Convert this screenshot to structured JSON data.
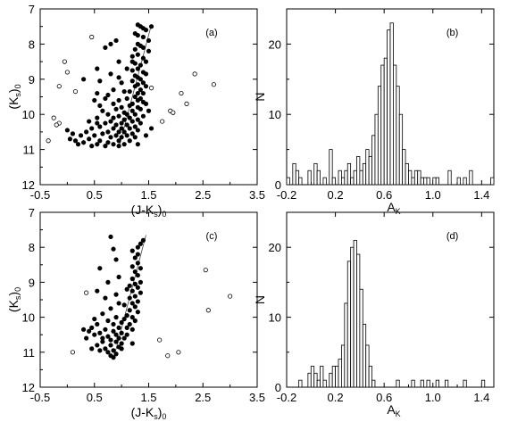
{
  "chart_data": [
    {
      "id": "a",
      "type": "scatter",
      "panel_label": "(a)",
      "xlabel": "(J-Ks)0",
      "xlabel_parts": [
        "(J-K",
        "s",
        ")",
        "0"
      ],
      "ylabel_parts": [
        "(K",
        "s",
        ")",
        "0"
      ],
      "xlim": [
        -0.5,
        3.5
      ],
      "ylim": [
        12,
        7
      ],
      "y_inverted": true,
      "xticks": [
        "-0.5",
        "0.5",
        "1.5",
        "2.5",
        "3.5"
      ],
      "xtick_values": [
        -0.5,
        0.5,
        1.5,
        2.5,
        3.5
      ],
      "yticks": [
        "7",
        "8",
        "9",
        "10",
        "11",
        "12"
      ],
      "ytick_values": [
        7,
        8,
        9,
        10,
        11,
        12
      ],
      "fitline": [
        [
          0.95,
          10.95
        ],
        [
          1.55,
          7.45
        ]
      ],
      "open_points": [
        [
          0.45,
          7.8
        ],
        [
          -0.05,
          8.5
        ],
        [
          0.0,
          8.8
        ],
        [
          -0.15,
          9.2
        ],
        [
          0.15,
          9.35
        ],
        [
          -0.25,
          10.1
        ],
        [
          -0.15,
          10.25
        ],
        [
          -0.2,
          10.3
        ],
        [
          -0.35,
          10.75
        ],
        [
          1.55,
          9.25
        ],
        [
          1.9,
          9.9
        ],
        [
          1.95,
          9.95
        ],
        [
          2.2,
          9.7
        ],
        [
          2.35,
          8.85
        ],
        [
          2.1,
          9.4
        ],
        [
          2.7,
          9.15
        ],
        [
          1.75,
          10.2
        ]
      ],
      "filled_points": [
        [
          1.3,
          7.45
        ],
        [
          1.35,
          7.5
        ],
        [
          1.55,
          7.5
        ],
        [
          1.4,
          7.55
        ],
        [
          1.45,
          7.6
        ],
        [
          1.25,
          7.7
        ],
        [
          1.3,
          7.75
        ],
        [
          1.4,
          7.8
        ],
        [
          0.9,
          7.9
        ],
        [
          1.3,
          8.0
        ],
        [
          1.35,
          8.05
        ],
        [
          1.4,
          8.1
        ],
        [
          1.25,
          8.15
        ],
        [
          0.7,
          8.1
        ],
        [
          1.3,
          8.3
        ],
        [
          1.2,
          8.35
        ],
        [
          1.4,
          8.4
        ],
        [
          1.45,
          8.5
        ],
        [
          0.95,
          8.5
        ],
        [
          1.25,
          8.55
        ],
        [
          1.35,
          8.6
        ],
        [
          1.3,
          8.7
        ],
        [
          0.55,
          8.7
        ],
        [
          1.2,
          8.75
        ],
        [
          1.4,
          8.8
        ],
        [
          1.45,
          8.85
        ],
        [
          1.25,
          8.9
        ],
        [
          1.3,
          8.95
        ],
        [
          0.8,
          8.85
        ],
        [
          0.95,
          8.95
        ],
        [
          1.35,
          9.0
        ],
        [
          1.2,
          9.05
        ],
        [
          1.4,
          9.1
        ],
        [
          0.3,
          9.0
        ],
        [
          0.6,
          9.05
        ],
        [
          1.3,
          9.15
        ],
        [
          1.25,
          9.2
        ],
        [
          1.35,
          9.3
        ],
        [
          0.85,
          9.3
        ],
        [
          1.05,
          9.35
        ],
        [
          1.15,
          9.35
        ],
        [
          1.3,
          9.4
        ],
        [
          1.4,
          9.4
        ],
        [
          0.55,
          9.4
        ],
        [
          0.75,
          9.45
        ],
        [
          1.25,
          9.5
        ],
        [
          1.35,
          9.55
        ],
        [
          1.1,
          9.55
        ],
        [
          0.95,
          9.6
        ],
        [
          0.7,
          9.55
        ],
        [
          1.3,
          9.6
        ],
        [
          1.4,
          9.65
        ],
        [
          1.2,
          9.7
        ],
        [
          0.85,
          9.7
        ],
        [
          1.45,
          9.7
        ],
        [
          1.15,
          9.75
        ],
        [
          0.6,
          9.75
        ],
        [
          1.3,
          9.8
        ],
        [
          1.0,
          9.8
        ],
        [
          1.35,
          9.85
        ],
        [
          1.2,
          9.9
        ],
        [
          0.9,
          9.85
        ],
        [
          1.05,
          9.95
        ],
        [
          1.1,
          10.0
        ],
        [
          0.75,
          10.0
        ],
        [
          1.25,
          10.0
        ],
        [
          1.4,
          10.05
        ],
        [
          0.95,
          10.05
        ],
        [
          1.15,
          10.1
        ],
        [
          0.85,
          10.1
        ],
        [
          1.3,
          10.15
        ],
        [
          1.05,
          10.15
        ],
        [
          0.55,
          10.1
        ],
        [
          1.2,
          10.2
        ],
        [
          0.8,
          10.2
        ],
        [
          1.0,
          10.25
        ],
        [
          1.35,
          10.25
        ],
        [
          0.7,
          10.25
        ],
        [
          0.9,
          10.3
        ],
        [
          1.1,
          10.3
        ],
        [
          1.25,
          10.35
        ],
        [
          0.6,
          10.35
        ],
        [
          1.0,
          10.4
        ],
        [
          0.85,
          10.4
        ],
        [
          1.15,
          10.4
        ],
        [
          0.45,
          10.4
        ],
        [
          1.3,
          10.45
        ],
        [
          0.95,
          10.5
        ],
        [
          0.75,
          10.5
        ],
        [
          1.05,
          10.5
        ],
        [
          1.2,
          10.55
        ],
        [
          0.35,
          10.5
        ],
        [
          0.65,
          10.55
        ],
        [
          0.9,
          10.6
        ],
        [
          1.1,
          10.6
        ],
        [
          0.5,
          10.6
        ],
        [
          0.8,
          10.65
        ],
        [
          1.0,
          10.65
        ],
        [
          1.25,
          10.65
        ],
        [
          0.25,
          10.6
        ],
        [
          0.1,
          10.55
        ],
        [
          0.0,
          10.45
        ],
        [
          0.05,
          10.7
        ],
        [
          0.4,
          10.7
        ],
        [
          0.6,
          10.75
        ],
        [
          0.95,
          10.75
        ],
        [
          1.15,
          10.75
        ],
        [
          0.3,
          10.8
        ],
        [
          0.75,
          10.8
        ],
        [
          0.55,
          10.85
        ],
        [
          0.85,
          10.85
        ],
        [
          1.05,
          10.85
        ],
        [
          0.2,
          10.85
        ],
        [
          0.45,
          10.9
        ],
        [
          0.7,
          10.9
        ],
        [
          0.95,
          10.9
        ],
        [
          1.3,
          10.85
        ],
        [
          0.15,
          10.75
        ],
        [
          1.5,
          8.2
        ],
        [
          1.45,
          9.2
        ],
        [
          1.5,
          9.9
        ],
        [
          1.55,
          10.4
        ],
        [
          1.45,
          10.6
        ],
        [
          0.5,
          9.6
        ],
        [
          0.65,
          9.9
        ],
        [
          0.4,
          10.2
        ],
        [
          0.55,
          10.25
        ],
        [
          1.5,
          7.9
        ],
        [
          1.2,
          8.5
        ],
        [
          0.8,
          8.0
        ],
        [
          1.1,
          8.7
        ],
        [
          1.0,
          9.1
        ]
      ]
    },
    {
      "id": "b",
      "type": "bar",
      "panel_label": "(b)",
      "xlabel_parts": [
        "A",
        "K"
      ],
      "ylabel": "N",
      "xlim": [
        -0.2,
        1.5
      ],
      "ylim": [
        0,
        25
      ],
      "xticks": [
        "-0.2",
        "0.2",
        "0.6",
        "1.0",
        "1.4"
      ],
      "xtick_values": [
        -0.2,
        0.2,
        0.6,
        1.0,
        1.4
      ],
      "yticks": [
        "0",
        "10",
        "20"
      ],
      "ytick_values": [
        0,
        10,
        20
      ],
      "bin_start": -0.2,
      "bin_width": 0.025,
      "values": [
        1,
        0,
        3,
        2,
        1,
        0,
        0,
        2,
        0,
        3,
        2,
        0,
        1,
        0,
        5,
        1,
        0,
        2,
        1,
        2,
        3,
        1,
        2,
        4,
        2,
        3,
        5,
        4,
        7,
        10,
        14,
        17,
        18,
        22,
        23,
        17,
        14,
        10,
        5,
        3,
        2,
        1,
        2,
        2,
        1,
        1,
        1,
        0,
        1,
        1,
        0,
        0,
        0,
        2,
        0,
        0,
        1,
        0,
        1,
        0,
        2,
        0,
        0,
        0,
        0,
        0,
        0,
        1
      ]
    },
    {
      "id": "c",
      "type": "scatter",
      "panel_label": "(c)",
      "xlabel_parts": [
        "(J-K",
        "s",
        ")",
        "0"
      ],
      "ylabel_parts": [
        "(K",
        "s",
        ")",
        "0"
      ],
      "xlim": [
        -0.5,
        3.5
      ],
      "ylim": [
        12,
        7
      ],
      "y_inverted": true,
      "xticks": [
        "-0.5",
        "0.5",
        "1.5",
        "2.5",
        "3.5"
      ],
      "xtick_values": [
        -0.5,
        0.5,
        1.5,
        2.5,
        3.5
      ],
      "yticks": [
        "7",
        "8",
        "9",
        "10",
        "11",
        "12"
      ],
      "ytick_values": [
        7,
        8,
        9,
        10,
        11,
        12
      ],
      "fitline": [
        [
          0.85,
          11.2
        ],
        [
          1.45,
          7.65
        ]
      ],
      "open_points": [
        [
          0.35,
          9.3
        ],
        [
          0.1,
          11.0
        ],
        [
          1.7,
          10.65
        ],
        [
          1.85,
          11.1
        ],
        [
          2.05,
          11.0
        ],
        [
          2.55,
          8.65
        ],
        [
          2.6,
          9.8
        ],
        [
          3.0,
          9.4
        ]
      ],
      "filled_points": [
        [
          0.8,
          7.7
        ],
        [
          1.4,
          7.8
        ],
        [
          1.35,
          7.9
        ],
        [
          1.3,
          8.0
        ],
        [
          0.85,
          8.05
        ],
        [
          1.2,
          8.1
        ],
        [
          1.3,
          8.2
        ],
        [
          1.25,
          8.3
        ],
        [
          0.9,
          8.35
        ],
        [
          1.3,
          8.45
        ],
        [
          1.2,
          8.55
        ],
        [
          1.35,
          8.6
        ],
        [
          0.6,
          8.6
        ],
        [
          1.25,
          8.7
        ],
        [
          1.3,
          8.8
        ],
        [
          0.95,
          8.85
        ],
        [
          1.2,
          8.9
        ],
        [
          1.35,
          9.0
        ],
        [
          0.75,
          9.0
        ],
        [
          1.25,
          9.05
        ],
        [
          1.3,
          9.15
        ],
        [
          1.1,
          9.2
        ],
        [
          1.2,
          9.25
        ],
        [
          0.55,
          9.25
        ],
        [
          1.35,
          9.3
        ],
        [
          0.9,
          9.35
        ],
        [
          1.25,
          9.4
        ],
        [
          1.15,
          9.45
        ],
        [
          0.7,
          9.45
        ],
        [
          1.3,
          9.55
        ],
        [
          1.2,
          9.6
        ],
        [
          0.95,
          9.6
        ],
        [
          1.05,
          9.65
        ],
        [
          1.25,
          9.7
        ],
        [
          0.8,
          9.75
        ],
        [
          1.15,
          9.8
        ],
        [
          1.3,
          9.85
        ],
        [
          0.65,
          9.9
        ],
        [
          1.1,
          9.95
        ],
        [
          1.2,
          10.0
        ],
        [
          0.9,
          10.0
        ],
        [
          1.05,
          10.05
        ],
        [
          0.75,
          10.1
        ],
        [
          1.25,
          10.1
        ],
        [
          1.0,
          10.15
        ],
        [
          0.85,
          10.2
        ],
        [
          1.15,
          10.2
        ],
        [
          0.55,
          10.2
        ],
        [
          0.95,
          10.3
        ],
        [
          1.1,
          10.3
        ],
        [
          0.7,
          10.35
        ],
        [
          1.2,
          10.35
        ],
        [
          0.45,
          10.3
        ],
        [
          0.85,
          10.4
        ],
        [
          1.0,
          10.45
        ],
        [
          0.6,
          10.45
        ],
        [
          0.9,
          10.5
        ],
        [
          1.1,
          10.5
        ],
        [
          0.75,
          10.55
        ],
        [
          0.5,
          10.5
        ],
        [
          0.95,
          10.6
        ],
        [
          1.05,
          10.6
        ],
        [
          0.8,
          10.65
        ],
        [
          0.35,
          10.6
        ],
        [
          0.65,
          10.7
        ],
        [
          0.9,
          10.7
        ],
        [
          1.0,
          10.75
        ],
        [
          0.55,
          10.8
        ],
        [
          0.8,
          10.8
        ],
        [
          0.95,
          10.85
        ],
        [
          0.7,
          10.9
        ],
        [
          0.85,
          10.95
        ],
        [
          0.75,
          11.0
        ],
        [
          0.9,
          11.05
        ],
        [
          0.8,
          11.1
        ],
        [
          0.85,
          11.15
        ],
        [
          1.0,
          10.9
        ],
        [
          0.6,
          10.95
        ],
        [
          0.45,
          10.9
        ],
        [
          0.65,
          10.6
        ],
        [
          0.4,
          10.4
        ],
        [
          0.3,
          10.35
        ],
        [
          0.5,
          10.05
        ],
        [
          1.2,
          10.75
        ],
        [
          1.15,
          9.1
        ]
      ]
    },
    {
      "id": "d",
      "type": "bar",
      "panel_label": "(d)",
      "xlabel_parts": [
        "A",
        "K"
      ],
      "ylabel": "N",
      "xlim": [
        -0.2,
        1.5
      ],
      "ylim": [
        0,
        25
      ],
      "xticks": [
        "-0.2",
        "0.2",
        "0.6",
        "1.0",
        "1.4"
      ],
      "xtick_values": [
        -0.2,
        0.2,
        0.6,
        1.0,
        1.4
      ],
      "yticks": [
        "0",
        "10",
        "20"
      ],
      "ytick_values": [
        0,
        10,
        20
      ],
      "bin_start": -0.1,
      "bin_width": 0.025,
      "values": [
        1,
        0,
        0,
        2,
        3,
        2,
        1,
        3,
        1,
        0,
        2,
        3,
        3,
        4,
        6,
        12,
        18,
        20,
        21,
        19,
        14,
        9,
        6,
        3,
        1,
        0,
        0,
        0,
        0,
        0,
        0,
        0,
        1,
        0,
        0,
        0,
        0,
        1,
        0,
        0,
        1,
        0,
        1,
        0,
        0,
        1,
        0,
        0,
        1,
        0,
        0,
        0,
        0,
        0,
        1,
        0,
        0,
        0,
        0,
        0,
        1
      ]
    }
  ]
}
